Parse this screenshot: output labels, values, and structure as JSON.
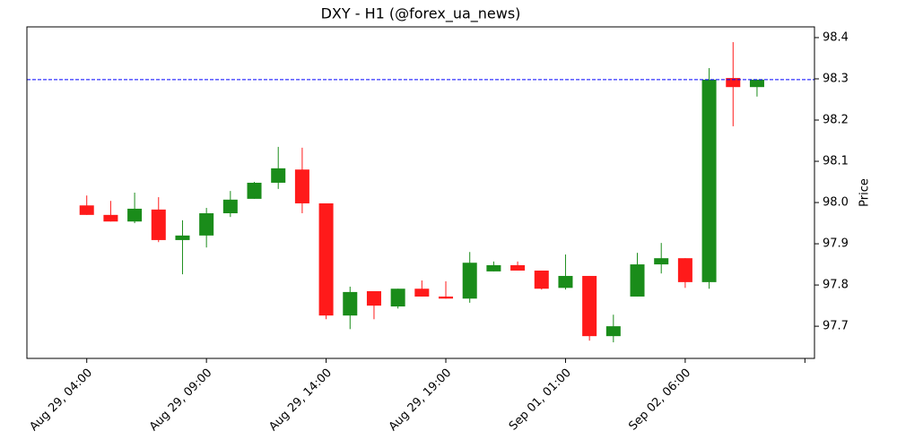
{
  "chart_data": {
    "type": "candlestick",
    "title": "DXY - H1 (@forex_ua_news)",
    "y_label": "Price",
    "up_color": "#1a8c1a",
    "down_color": "#ff1a1a",
    "open": [
      97.993,
      97.97,
      97.954,
      97.983,
      97.909,
      97.92,
      97.974,
      98.009,
      98.048,
      98.08,
      97.998,
      97.726,
      97.785,
      97.748,
      97.791,
      97.772,
      97.767,
      97.833,
      97.848,
      97.835,
      97.793,
      97.822,
      97.676,
      97.772,
      97.85,
      97.865,
      97.807,
      98.302,
      98.28
    ],
    "high": [
      98.017,
      98.004,
      98.024,
      98.013,
      97.957,
      97.987,
      98.028,
      98.05,
      98.135,
      98.133,
      97.998,
      97.796,
      97.785,
      97.791,
      97.811,
      97.809,
      97.88,
      97.857,
      97.857,
      97.835,
      97.874,
      97.822,
      97.728,
      97.878,
      97.902,
      97.865,
      98.326,
      98.389,
      98.298
    ],
    "low": [
      97.97,
      97.954,
      97.95,
      97.904,
      97.826,
      97.891,
      97.965,
      98.009,
      98.033,
      97.974,
      97.717,
      97.693,
      97.717,
      97.743,
      97.772,
      97.767,
      97.757,
      97.833,
      97.835,
      97.789,
      97.789,
      97.665,
      97.661,
      97.772,
      97.828,
      97.793,
      97.791,
      98.185,
      98.257
    ],
    "close": [
      97.97,
      97.954,
      97.985,
      97.909,
      97.92,
      97.974,
      98.007,
      98.048,
      98.083,
      97.998,
      97.726,
      97.783,
      97.75,
      97.791,
      97.772,
      97.767,
      97.854,
      97.848,
      97.835,
      97.791,
      97.822,
      97.676,
      97.7,
      97.85,
      97.865,
      97.807,
      98.298,
      98.28,
      98.298
    ],
    "xlim": [
      -2.5,
      30.4
    ],
    "xticks": [
      {
        "value": 0,
        "label": "Aug 29, 04:00"
      },
      {
        "value": 5,
        "label": "Aug 29, 09:00"
      },
      {
        "value": 10,
        "label": "Aug 29, 14:00"
      },
      {
        "value": 15,
        "label": "Aug 29, 19:00"
      },
      {
        "value": 20,
        "label": "Sep 01, 01:00"
      },
      {
        "value": 25,
        "label": "Sep 02, 06:00"
      },
      {
        "value": 30,
        "label": null
      }
    ],
    "ylim": [
      97.622,
      98.426
    ],
    "yticks": [
      97.7,
      97.8,
      97.9,
      {
        "value": 98.0,
        "label": "98.0"
      },
      98.1,
      98.2,
      98.3,
      98.4
    ],
    "hline": {
      "value": 98.298,
      "color": "#0000ff"
    }
  }
}
